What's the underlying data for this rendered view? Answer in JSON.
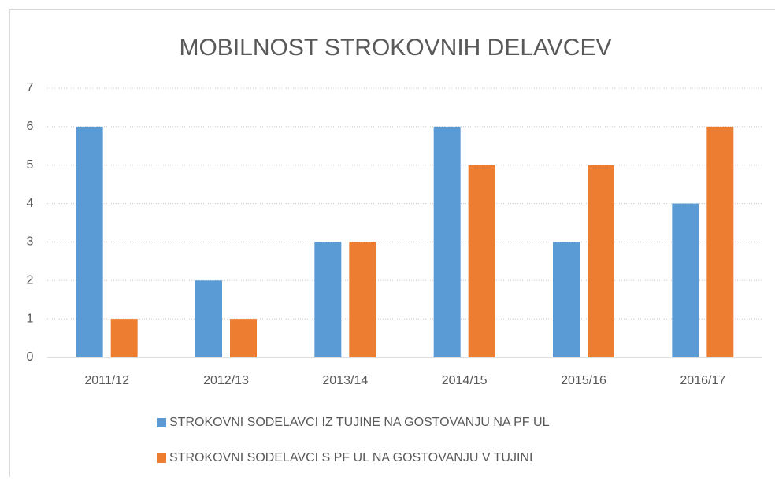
{
  "chart_data": {
    "type": "bar",
    "title": "MOBILNOST STROKOVNIH DELAVCEV",
    "categories": [
      "2011/12",
      "2012/13",
      "2013/14",
      "2014/15",
      "2015/16",
      "2016/17"
    ],
    "series": [
      {
        "name": "STROKOVNI SODELAVCI IZ TUJINE NA GOSTOVANJU NA PF UL",
        "color": "#5b9bd5",
        "values": [
          6,
          2,
          3,
          6,
          3,
          4
        ]
      },
      {
        "name": "STROKOVNI SODELAVCI S PF UL NA GOSTOVANJU V TUJINI",
        "color": "#ed7d31",
        "values": [
          1,
          1,
          3,
          5,
          5,
          6
        ]
      }
    ],
    "ylim": [
      0,
      7
    ],
    "yticks": [
      0,
      1,
      2,
      3,
      4,
      5,
      6,
      7
    ],
    "grid": true,
    "legend": "bottom"
  }
}
